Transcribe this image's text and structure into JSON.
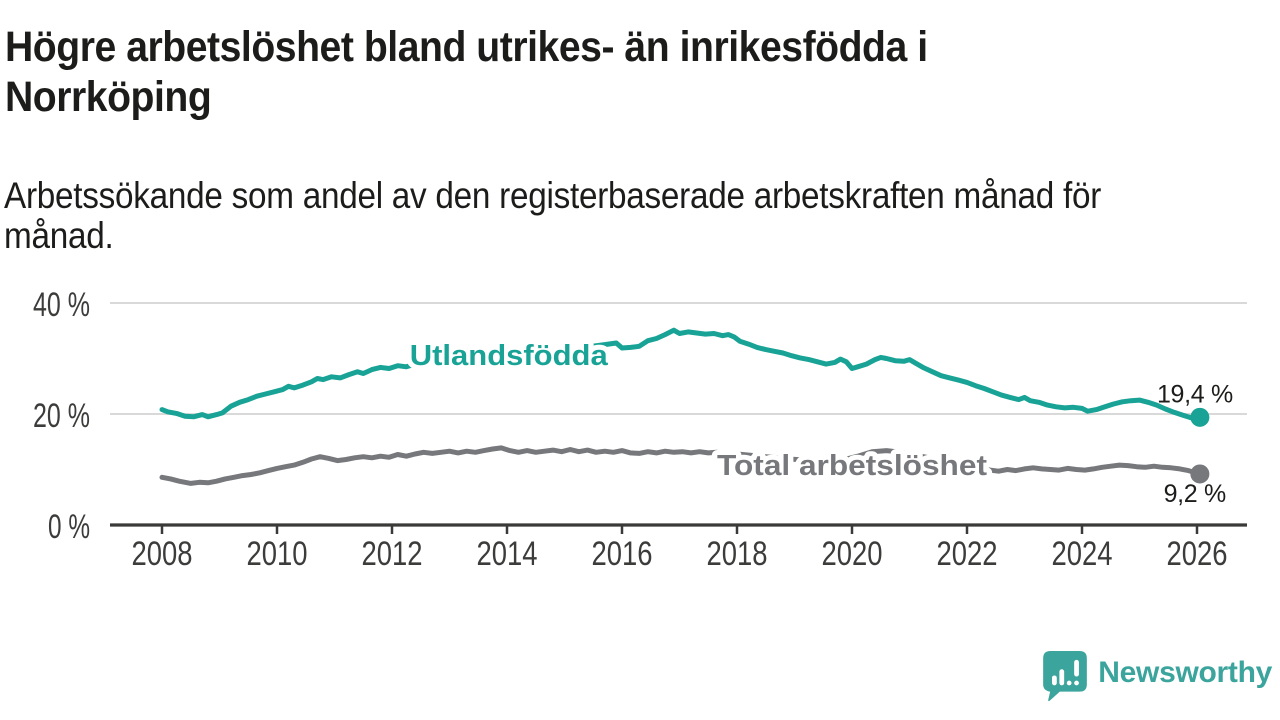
{
  "title": "Högre arbetslöshet bland utrikes- än inrikesfödda i\nNorrköping",
  "subtitle": "Arbetssökande som andel av den registerbaserade arbetskraften månad för\nmånad.",
  "footer": {
    "brand": "Newsworthy"
  },
  "colors": {
    "teal": "#18A396",
    "gray": "#77787C",
    "grid": "#D9D9D9",
    "axis": "#3A3A38",
    "tick_text": "#3C3C3B",
    "value_text": "#1C1C1A",
    "logo": "#3BA49C",
    "background": "#FFFFFF"
  },
  "chart_data": {
    "type": "line",
    "title": "Högre arbetslöshet bland utrikes- än inrikesfödda i Norrköping",
    "subtitle": "Arbetssökande som andel av den registerbaserade arbetskraften månad för månad.",
    "xlabel": "",
    "ylabel": "",
    "grid": "horizontal",
    "legend_position": "inline-labels",
    "x_ticks": [
      2008,
      2010,
      2012,
      2014,
      2016,
      2018,
      2020,
      2022,
      2024,
      2026
    ],
    "y_ticks": [
      {
        "value": 0,
        "label": "0 %"
      },
      {
        "value": 20,
        "label": "20 %"
      },
      {
        "value": 40,
        "label": "40 %"
      }
    ],
    "ylim": [
      0,
      42
    ],
    "xlim": [
      2007.1,
      2026.9
    ],
    "series": [
      {
        "name": "Utlandsfödda",
        "color_key": "teal",
        "end_value": 19.4,
        "end_label": "19,4 %",
        "points": [
          [
            2008.0,
            20.8
          ],
          [
            2008.1,
            20.4
          ],
          [
            2008.25,
            20.1
          ],
          [
            2008.4,
            19.6
          ],
          [
            2008.55,
            19.5
          ],
          [
            2008.7,
            19.9
          ],
          [
            2008.8,
            19.5
          ],
          [
            2008.95,
            19.9
          ],
          [
            2009.05,
            20.2
          ],
          [
            2009.2,
            21.4
          ],
          [
            2009.35,
            22.1
          ],
          [
            2009.5,
            22.6
          ],
          [
            2009.65,
            23.2
          ],
          [
            2009.8,
            23.6
          ],
          [
            2009.95,
            24.0
          ],
          [
            2010.1,
            24.4
          ],
          [
            2010.2,
            25.0
          ],
          [
            2010.3,
            24.7
          ],
          [
            2010.45,
            25.2
          ],
          [
            2010.6,
            25.8
          ],
          [
            2010.7,
            26.4
          ],
          [
            2010.8,
            26.2
          ],
          [
            2010.95,
            26.7
          ],
          [
            2011.1,
            26.5
          ],
          [
            2011.25,
            27.1
          ],
          [
            2011.4,
            27.6
          ],
          [
            2011.5,
            27.3
          ],
          [
            2011.65,
            28.0
          ],
          [
            2011.8,
            28.4
          ],
          [
            2011.95,
            28.2
          ],
          [
            2012.1,
            28.7
          ],
          [
            2012.25,
            28.5
          ],
          [
            2012.4,
            29.0
          ],
          [
            2012.6,
            28.9
          ],
          [
            2012.8,
            29.3
          ],
          [
            2013.0,
            29.5
          ],
          [
            2013.3,
            29.9
          ],
          [
            2013.6,
            30.3
          ],
          [
            2013.9,
            30.6
          ],
          [
            2014.2,
            30.9
          ],
          [
            2014.5,
            31.2
          ],
          [
            2014.8,
            31.5
          ],
          [
            2015.1,
            31.8
          ],
          [
            2015.4,
            32.1
          ],
          [
            2015.7,
            32.5
          ],
          [
            2015.9,
            32.8
          ],
          [
            2016.0,
            31.9
          ],
          [
            2016.15,
            32.0
          ],
          [
            2016.3,
            32.2
          ],
          [
            2016.45,
            33.2
          ],
          [
            2016.6,
            33.6
          ],
          [
            2016.75,
            34.3
          ],
          [
            2016.9,
            35.1
          ],
          [
            2017.0,
            34.5
          ],
          [
            2017.15,
            34.8
          ],
          [
            2017.3,
            34.6
          ],
          [
            2017.45,
            34.4
          ],
          [
            2017.6,
            34.5
          ],
          [
            2017.75,
            34.1
          ],
          [
            2017.85,
            34.3
          ],
          [
            2017.95,
            33.9
          ],
          [
            2018.05,
            33.1
          ],
          [
            2018.2,
            32.6
          ],
          [
            2018.35,
            32.0
          ],
          [
            2018.5,
            31.6
          ],
          [
            2018.65,
            31.3
          ],
          [
            2018.8,
            31.0
          ],
          [
            2018.95,
            30.5
          ],
          [
            2019.1,
            30.1
          ],
          [
            2019.25,
            29.8
          ],
          [
            2019.4,
            29.4
          ],
          [
            2019.55,
            29.0
          ],
          [
            2019.7,
            29.3
          ],
          [
            2019.8,
            29.9
          ],
          [
            2019.9,
            29.4
          ],
          [
            2020.0,
            28.2
          ],
          [
            2020.1,
            28.5
          ],
          [
            2020.25,
            29.0
          ],
          [
            2020.4,
            29.8
          ],
          [
            2020.5,
            30.2
          ],
          [
            2020.6,
            30.0
          ],
          [
            2020.75,
            29.6
          ],
          [
            2020.9,
            29.5
          ],
          [
            2021.0,
            29.8
          ],
          [
            2021.1,
            29.2
          ],
          [
            2021.25,
            28.3
          ],
          [
            2021.4,
            27.6
          ],
          [
            2021.55,
            26.9
          ],
          [
            2021.7,
            26.5
          ],
          [
            2021.85,
            26.1
          ],
          [
            2022.0,
            25.7
          ],
          [
            2022.15,
            25.1
          ],
          [
            2022.3,
            24.6
          ],
          [
            2022.45,
            24.0
          ],
          [
            2022.6,
            23.4
          ],
          [
            2022.75,
            23.0
          ],
          [
            2022.9,
            22.6
          ],
          [
            2023.0,
            23.0
          ],
          [
            2023.1,
            22.4
          ],
          [
            2023.25,
            22.1
          ],
          [
            2023.4,
            21.6
          ],
          [
            2023.55,
            21.3
          ],
          [
            2023.7,
            21.1
          ],
          [
            2023.85,
            21.2
          ],
          [
            2024.0,
            21.0
          ],
          [
            2024.1,
            20.5
          ],
          [
            2024.25,
            20.8
          ],
          [
            2024.4,
            21.3
          ],
          [
            2024.55,
            21.8
          ],
          [
            2024.7,
            22.2
          ],
          [
            2024.85,
            22.4
          ],
          [
            2025.0,
            22.5
          ],
          [
            2025.15,
            22.1
          ],
          [
            2025.3,
            21.6
          ],
          [
            2025.45,
            20.9
          ],
          [
            2025.6,
            20.3
          ],
          [
            2025.75,
            19.8
          ],
          [
            2025.9,
            19.3
          ],
          [
            2026.05,
            19.4
          ]
        ]
      },
      {
        "name": "Total arbetslöshet",
        "color_key": "gray",
        "end_value": 9.2,
        "end_label": "9,2 %",
        "points": [
          [
            2008.0,
            8.6
          ],
          [
            2008.15,
            8.3
          ],
          [
            2008.3,
            7.9
          ],
          [
            2008.5,
            7.5
          ],
          [
            2008.65,
            7.7
          ],
          [
            2008.8,
            7.6
          ],
          [
            2008.95,
            7.9
          ],
          [
            2009.1,
            8.3
          ],
          [
            2009.25,
            8.6
          ],
          [
            2009.4,
            8.9
          ],
          [
            2009.55,
            9.1
          ],
          [
            2009.7,
            9.4
          ],
          [
            2009.85,
            9.8
          ],
          [
            2010.0,
            10.2
          ],
          [
            2010.15,
            10.5
          ],
          [
            2010.3,
            10.8
          ],
          [
            2010.45,
            11.3
          ],
          [
            2010.6,
            11.9
          ],
          [
            2010.75,
            12.3
          ],
          [
            2010.9,
            12.0
          ],
          [
            2011.05,
            11.6
          ],
          [
            2011.2,
            11.8
          ],
          [
            2011.35,
            12.1
          ],
          [
            2011.5,
            12.3
          ],
          [
            2011.65,
            12.1
          ],
          [
            2011.8,
            12.4
          ],
          [
            2011.95,
            12.2
          ],
          [
            2012.1,
            12.7
          ],
          [
            2012.25,
            12.4
          ],
          [
            2012.4,
            12.8
          ],
          [
            2012.55,
            13.1
          ],
          [
            2012.7,
            12.9
          ],
          [
            2012.85,
            13.1
          ],
          [
            2013.0,
            13.3
          ],
          [
            2013.15,
            13.0
          ],
          [
            2013.3,
            13.3
          ],
          [
            2013.45,
            13.1
          ],
          [
            2013.6,
            13.4
          ],
          [
            2013.75,
            13.7
          ],
          [
            2013.9,
            13.9
          ],
          [
            2014.05,
            13.4
          ],
          [
            2014.2,
            13.1
          ],
          [
            2014.35,
            13.4
          ],
          [
            2014.5,
            13.1
          ],
          [
            2014.65,
            13.3
          ],
          [
            2014.8,
            13.5
          ],
          [
            2014.95,
            13.2
          ],
          [
            2015.1,
            13.6
          ],
          [
            2015.25,
            13.2
          ],
          [
            2015.4,
            13.5
          ],
          [
            2015.55,
            13.1
          ],
          [
            2015.7,
            13.3
          ],
          [
            2015.85,
            13.1
          ],
          [
            2016.0,
            13.4
          ],
          [
            2016.15,
            13.0
          ],
          [
            2016.3,
            12.9
          ],
          [
            2016.45,
            13.2
          ],
          [
            2016.6,
            13.0
          ],
          [
            2016.75,
            13.3
          ],
          [
            2016.9,
            13.1
          ],
          [
            2017.05,
            13.2
          ],
          [
            2017.2,
            13.0
          ],
          [
            2017.35,
            13.2
          ],
          [
            2017.5,
            13.0
          ],
          [
            2017.65,
            13.1
          ],
          [
            2017.8,
            12.9
          ],
          [
            2018.0,
            12.8
          ],
          [
            2018.3,
            12.5
          ],
          [
            2018.6,
            12.2
          ],
          [
            2018.9,
            11.9
          ],
          [
            2019.2,
            11.7
          ],
          [
            2019.5,
            11.5
          ],
          [
            2019.8,
            11.6
          ],
          [
            2020.1,
            12.4
          ],
          [
            2020.35,
            13.2
          ],
          [
            2020.6,
            13.4
          ],
          [
            2020.85,
            13.1
          ],
          [
            2021.1,
            12.6
          ],
          [
            2021.4,
            12.0
          ],
          [
            2021.7,
            11.4
          ],
          [
            2021.95,
            10.9
          ],
          [
            2022.2,
            10.3
          ],
          [
            2022.4,
            9.9
          ],
          [
            2022.55,
            9.7
          ],
          [
            2022.7,
            10.0
          ],
          [
            2022.85,
            9.8
          ],
          [
            2023.0,
            10.1
          ],
          [
            2023.15,
            10.3
          ],
          [
            2023.3,
            10.1
          ],
          [
            2023.45,
            10.0
          ],
          [
            2023.6,
            9.9
          ],
          [
            2023.75,
            10.2
          ],
          [
            2023.9,
            10.0
          ],
          [
            2024.05,
            9.9
          ],
          [
            2024.2,
            10.1
          ],
          [
            2024.35,
            10.4
          ],
          [
            2024.5,
            10.6
          ],
          [
            2024.65,
            10.8
          ],
          [
            2024.8,
            10.7
          ],
          [
            2024.95,
            10.5
          ],
          [
            2025.1,
            10.4
          ],
          [
            2025.25,
            10.6
          ],
          [
            2025.4,
            10.4
          ],
          [
            2025.55,
            10.3
          ],
          [
            2025.7,
            10.1
          ],
          [
            2025.85,
            9.8
          ],
          [
            2026.05,
            9.2
          ]
        ]
      }
    ],
    "annotations": {
      "series_labels": [
        {
          "text": "Utlandsfödda",
          "series": 0,
          "x": 2014.03,
          "y": 28.8
        },
        {
          "text": "Total arbetslöshet",
          "series": 1,
          "x": 2020.0,
          "y": 9.0
        }
      ],
      "end_labels": [
        {
          "text": "19,4 %",
          "series": 0,
          "position": "above"
        },
        {
          "text": "9,2 %",
          "series": 1,
          "position": "below"
        }
      ]
    }
  }
}
